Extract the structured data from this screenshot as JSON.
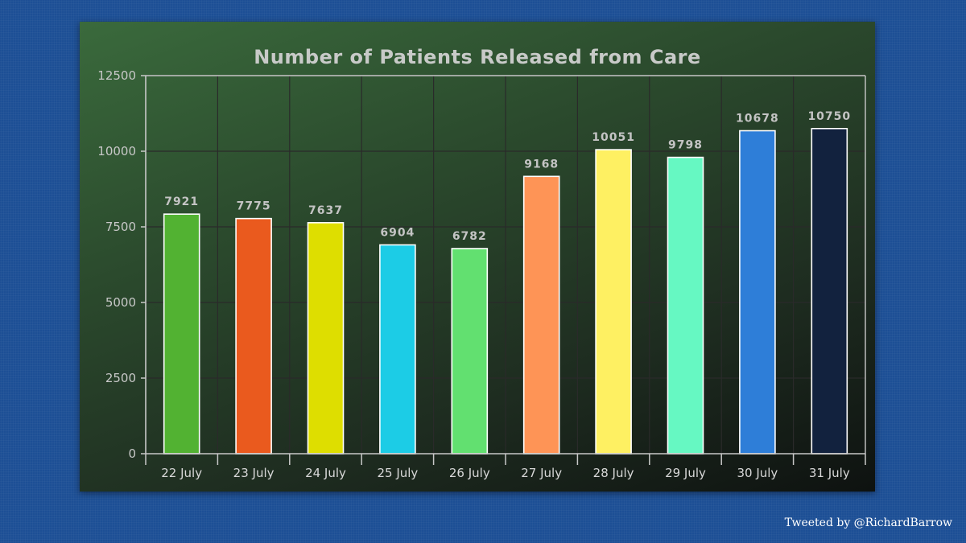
{
  "chart_data": {
    "type": "bar",
    "title": "Number of Patients Released from Care",
    "categories": [
      "22 July",
      "23 July",
      "24 July",
      "25 July",
      "26 July",
      "27 July",
      "28 July",
      "29 July",
      "30 July",
      "31 July"
    ],
    "values": [
      7921,
      7775,
      7637,
      6904,
      6782,
      9168,
      10051,
      9798,
      10678,
      10750
    ],
    "value_labels": [
      "7921",
      "7775",
      "7637",
      "6904",
      "6782",
      "9168",
      "10051",
      "9798",
      "10678",
      "10750"
    ],
    "bar_colors": [
      "#52b232",
      "#ea5a1e",
      "#dede00",
      "#1ccce6",
      "#62e070",
      "#fe9456",
      "#fef062",
      "#66f8c2",
      "#2e7ed8",
      "#12223e"
    ],
    "ylim": [
      0,
      12500
    ],
    "yticks": [
      0,
      2500,
      5000,
      7500,
      10000,
      12500
    ],
    "ytick_labels": [
      "0",
      "2500",
      "5000",
      "7500",
      "10000",
      "12500"
    ],
    "xlabel": "",
    "ylabel": "",
    "grid": true,
    "legend": "none"
  },
  "footer": {
    "credit": "Tweeted by @RichardBarrow"
  },
  "colors": {
    "page_background": "#1d4f95",
    "axis": "#c8c8c8",
    "grid": "#2a2a2a"
  }
}
